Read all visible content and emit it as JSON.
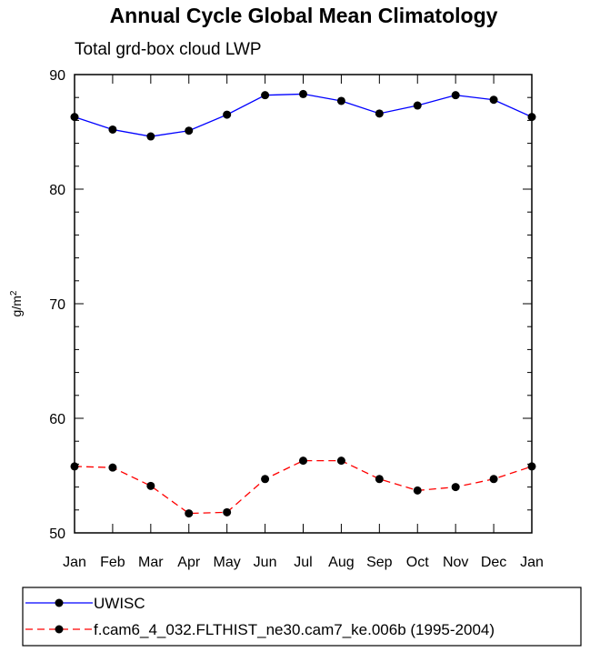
{
  "chart_data": {
    "type": "line",
    "title": "Annual Cycle Global Mean Climatology",
    "subtitle": "Total grd-box cloud LWP",
    "ylabel": "g/m",
    "ylabel_sup": "2",
    "xlabel": "",
    "categories": [
      "Jan",
      "Feb",
      "Mar",
      "Apr",
      "May",
      "Jun",
      "Jul",
      "Aug",
      "Sep",
      "Oct",
      "Nov",
      "Dec",
      "Jan"
    ],
    "ylim": [
      50,
      90
    ],
    "yticks": [
      50,
      60,
      70,
      80,
      90
    ],
    "y_minor_step": 2,
    "grid": false,
    "legend_position": "bottom",
    "series": [
      {
        "name": "UWISC",
        "color": "#0000ff",
        "dash": "solid",
        "values": [
          86.3,
          85.2,
          84.6,
          85.1,
          86.5,
          88.2,
          88.3,
          87.7,
          86.6,
          87.3,
          88.2,
          87.8,
          86.3
        ]
      },
      {
        "name": "f.cam6_4_032.FLTHIST_ne30.cam7_ke.006b (1995-2004)",
        "color": "#ff0000",
        "dash": "dashed",
        "values": [
          55.8,
          55.7,
          54.1,
          51.7,
          51.8,
          54.7,
          56.3,
          56.3,
          54.7,
          53.7,
          54.0,
          54.7,
          55.8
        ]
      }
    ]
  }
}
